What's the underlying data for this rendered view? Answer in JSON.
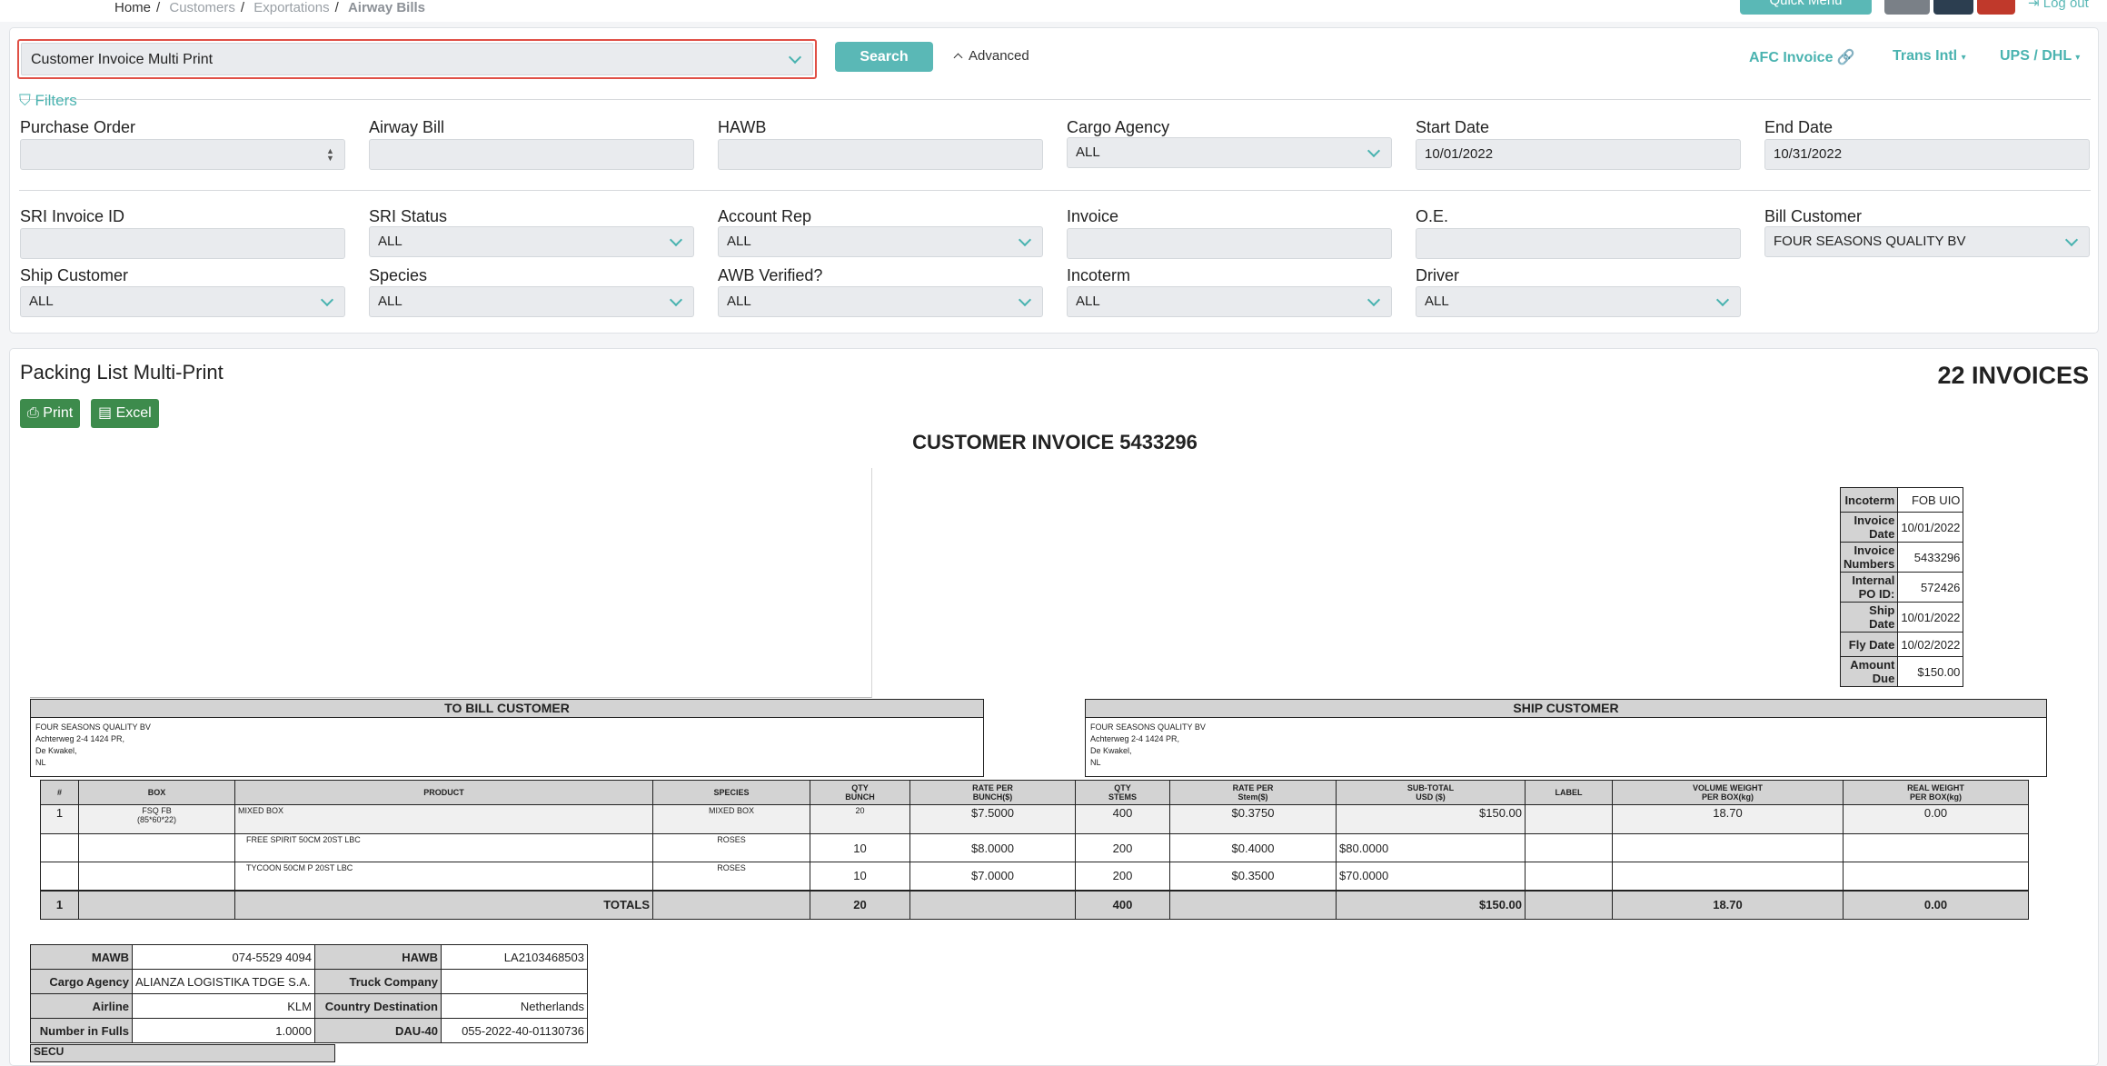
{
  "breadcrumb": {
    "home": "Home",
    "customers": "Customers",
    "exportations": "Exportations",
    "current": "Airway Bills",
    "sep": "/"
  },
  "topbar": {
    "quick_menu": "Quick Menu",
    "logout": "Log out"
  },
  "toolbar": {
    "report_selected": "Customer Invoice Multi Print",
    "search": "Search",
    "advanced": "Advanced",
    "afc_invoice": "AFC Invoice",
    "trans_intl": "Trans Intl",
    "ups_dhl": "UPS / DHL"
  },
  "filters": {
    "title": "Filters",
    "purchase_order": {
      "label": "Purchase Order",
      "value": ""
    },
    "airway_bill": {
      "label": "Airway Bill",
      "value": ""
    },
    "hawb": {
      "label": "HAWB",
      "value": ""
    },
    "cargo_agency": {
      "label": "Cargo Agency",
      "value": "ALL"
    },
    "start_date": {
      "label": "Start Date",
      "value": "10/01/2022"
    },
    "end_date": {
      "label": "End Date",
      "value": "10/31/2022"
    },
    "sri_invoice_id": {
      "label": "SRI Invoice ID",
      "value": ""
    },
    "sri_status": {
      "label": "SRI Status",
      "value": "ALL"
    },
    "account_rep": {
      "label": "Account Rep",
      "value": "ALL"
    },
    "invoice": {
      "label": "Invoice",
      "value": ""
    },
    "oe": {
      "label": "O.E.",
      "value": ""
    },
    "bill_customer": {
      "label": "Bill Customer",
      "value": "FOUR SEASONS QUALITY BV"
    },
    "ship_customer": {
      "label": "Ship Customer",
      "value": "ALL"
    },
    "species": {
      "label": "Species",
      "value": "ALL"
    },
    "awb_verified": {
      "label": "AWB Verified?",
      "value": "ALL"
    },
    "incoterm": {
      "label": "Incoterm",
      "value": "ALL"
    },
    "driver": {
      "label": "Driver",
      "value": "ALL"
    }
  },
  "report": {
    "title": "Packing List Multi-Print",
    "count": "22 INVOICES",
    "print": "Print",
    "excel": "Excel",
    "invoice_title": "CUSTOMER INVOICE 5433296",
    "info": [
      {
        "k": "Incoterm",
        "v": "FOB UIO"
      },
      {
        "k": "Invoice Date",
        "v": "10/01/2022"
      },
      {
        "k": "Invoice Numbers",
        "v": "5433296"
      },
      {
        "k": "Internal PO ID:",
        "v": "572426"
      },
      {
        "k": "Ship Date",
        "v": "10/01/2022"
      },
      {
        "k": "Fly Date",
        "v": "10/02/2022"
      },
      {
        "k": "Amount Due",
        "v": "$150.00"
      }
    ],
    "bill_customer": {
      "header": "TO BILL CUSTOMER",
      "lines": [
        "FOUR SEASONS QUALITY BV",
        "Achterweg 2-4 1424 PR,",
        "De Kwakel,",
        "NL"
      ]
    },
    "ship_customer": {
      "header": "SHIP CUSTOMER",
      "lines": [
        "FOUR SEASONS QUALITY BV",
        "Achterweg 2-4 1424 PR,",
        "De Kwakel,",
        "NL"
      ]
    },
    "items": {
      "headers": {
        "hash": "#",
        "box": "BOX",
        "product": "PRODUCT",
        "species": "SPECIES",
        "qty_bunch_1": "QTY",
        "qty_bunch_2": "BUNCH",
        "rate_bunch_1": "RATE PER",
        "rate_bunch_2": "BUNCH($)",
        "qty_stems_1": "QTY",
        "qty_stems_2": "STEMS",
        "rate_stem_1": "RATE PER",
        "rate_stem_2": "Stem($)",
        "subtotal_1": "SUB-TOTAL",
        "subtotal_2": "USD ($)",
        "label": "LABEL",
        "vol_1": "VOLUME WEIGHT",
        "vol_2": "PER BOX(kg)",
        "real_1": "REAL WEIGHT",
        "real_2": "PER BOX(kg)"
      },
      "row1": {
        "n": "1",
        "box_1": "FSQ FB",
        "box_2": "(85*60*22)",
        "product": "MIXED BOX",
        "species": "MIXED BOX",
        "qty_bunch": "20",
        "rate_bunch": "$7.5000",
        "qty_stems": "400",
        "rate_stem": "$0.3750",
        "subtotal": "$150.00",
        "label": "",
        "vol": "18.70",
        "real": "0.00"
      },
      "row2": {
        "product": "FREE SPIRIT 50CM 20ST LBC",
        "species": "ROSES",
        "qty_bunch": "10",
        "rate_bunch": "$8.0000",
        "qty_stems": "200",
        "rate_stem": "$0.4000",
        "subtotal": "$80.0000"
      },
      "row3": {
        "product": "TYCOON 50CM P 20ST LBC",
        "species": "ROSES",
        "qty_bunch": "10",
        "rate_bunch": "$7.0000",
        "qty_stems": "200",
        "rate_stem": "$0.3500",
        "subtotal": "$70.0000"
      },
      "totals": {
        "n": "1",
        "label": "TOTALS",
        "qty_bunch": "20",
        "qty_stems": "400",
        "subtotal": "$150.00",
        "vol": "18.70",
        "real": "0.00"
      }
    },
    "awb": {
      "mawb_k": "MAWB",
      "mawb_v": "074-5529 4094",
      "hawb_k": "HAWB",
      "hawb_v": "LA2103468503",
      "agency_k": "Cargo Agency",
      "agency_v": "ALIANZA LOGISTIKA TDGE S.A.",
      "truck_k": "Truck Company",
      "truck_v": "",
      "airline_k": "Airline",
      "airline_v": "KLM",
      "country_k": "Country Destination",
      "country_v": "Netherlands",
      "fulls_k": "Number in Fulls",
      "fulls_v": "1.0000",
      "dau_k": "DAU-40",
      "dau_v": "055-2022-40-01130736"
    },
    "tail_label": "SECU"
  }
}
